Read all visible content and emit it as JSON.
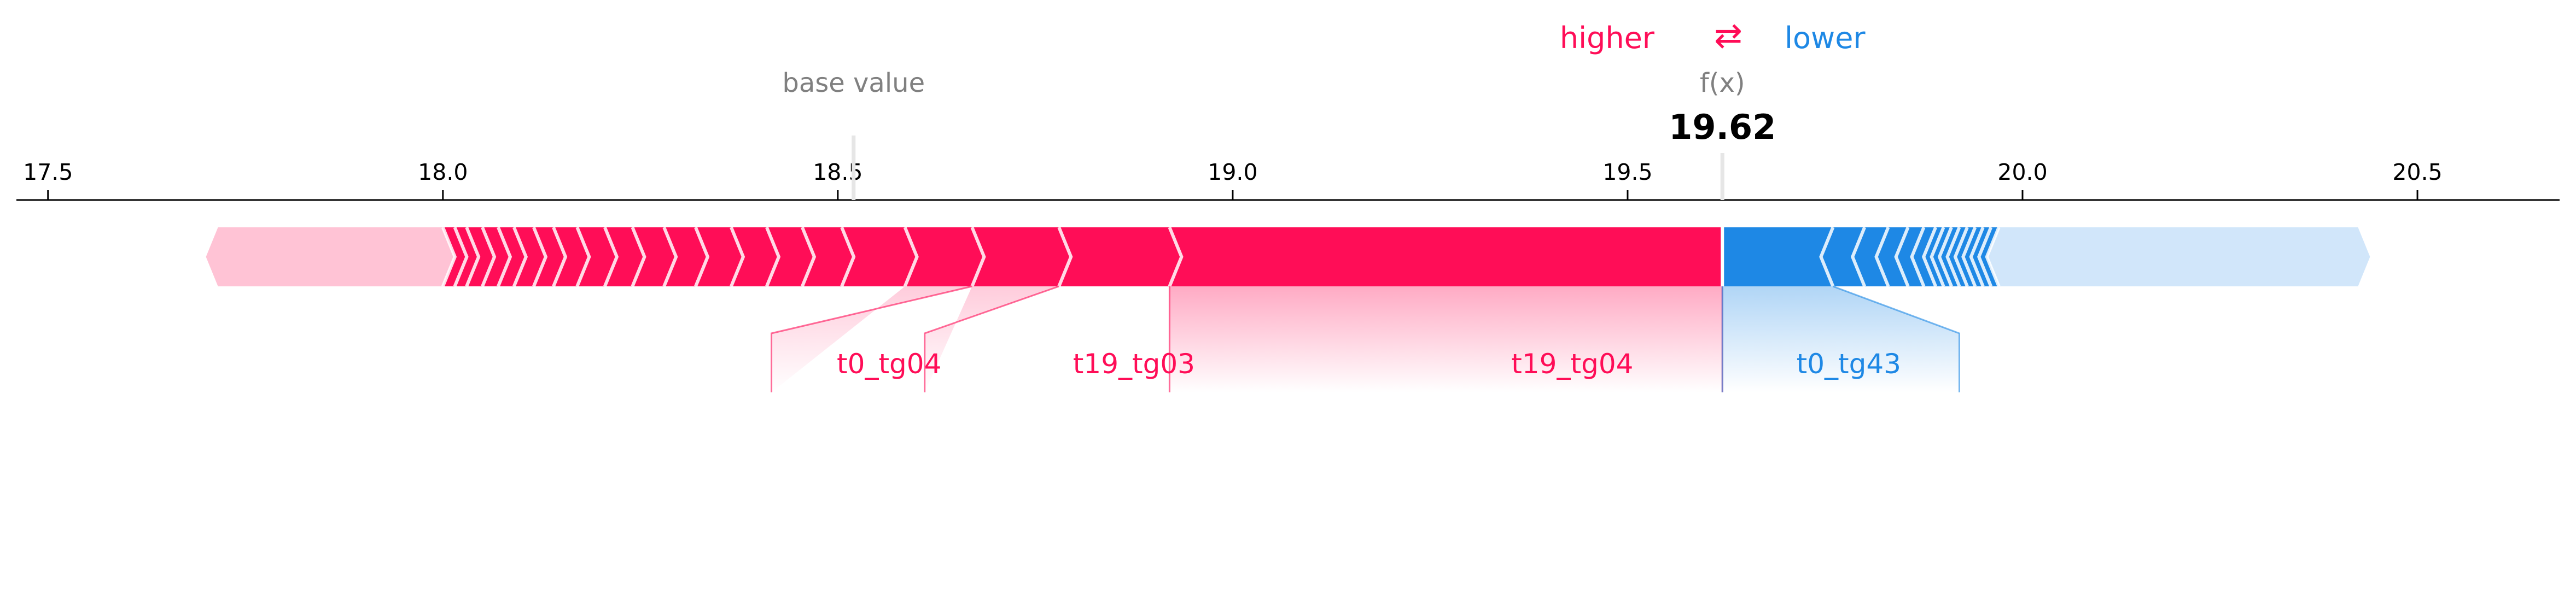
{
  "chart_data": {
    "type": "force",
    "title": "",
    "legend": {
      "higher_label": "higher",
      "swap_symbol": "⇄",
      "lower_label": "lower",
      "higher_color": "#ff0d57",
      "lower_color": "#1e88e5"
    },
    "base_value_label": "base value",
    "base_value": 18.52,
    "fx_label": "f(x)",
    "output_value": 19.62,
    "output_value_text": "19.62",
    "xlim": [
      17.46,
      20.68
    ],
    "ticks": [
      17.5,
      18.0,
      18.5,
      19.0,
      19.5,
      20.0,
      20.5
    ],
    "tick_labels": [
      "17.5",
      "18.0",
      "18.5",
      "19.0",
      "19.5",
      "20.0",
      "20.5"
    ],
    "positive_span": [
      17.7,
      19.62
    ],
    "negative_span": [
      19.62,
      20.44
    ],
    "positive_chevrons": [
      18.0,
      18.015,
      18.03,
      18.05,
      18.07,
      18.09,
      18.115,
      18.14,
      18.17,
      18.205,
      18.24,
      18.28,
      18.32,
      18.365,
      18.41,
      18.455,
      18.505,
      18.585,
      18.67,
      18.78,
      18.92
    ],
    "negative_chevrons": [
      19.76,
      19.8,
      19.83,
      19.855,
      19.875,
      19.89,
      19.9,
      19.91,
      19.92,
      19.93,
      19.94,
      19.95,
      19.96,
      19.97
    ],
    "positive_faded_until": 18.0,
    "negative_faded_from": 19.97,
    "features": [
      {
        "name": "t0_tg04",
        "sign": "positive",
        "start": 18.67,
        "end": 18.585,
        "label_x": 18.416
      },
      {
        "name": "t19_tg03",
        "sign": "positive",
        "start": 18.78,
        "end": 18.67,
        "label_x": 18.61
      },
      {
        "name": "t19_tg04",
        "sign": "positive",
        "start": 19.62,
        "end": 18.92,
        "label_x": 18.925
      },
      {
        "name": "t0_tg43",
        "sign": "negative",
        "start": 19.62,
        "end": 19.76,
        "label_x": 19.62
      }
    ],
    "feature_label_texts": [
      "t0_tg04",
      "t19_tg03",
      "t19_tg04",
      "t0_tg43"
    ]
  }
}
